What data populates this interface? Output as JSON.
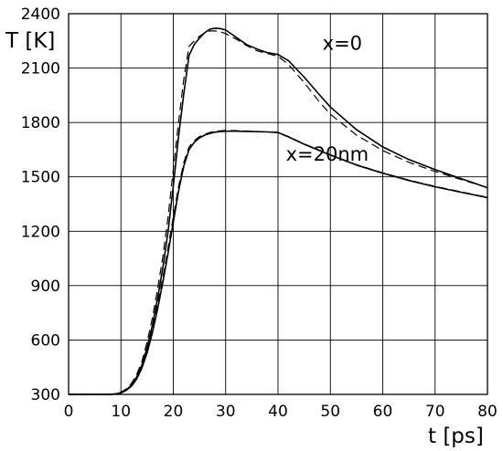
{
  "chart_data": {
    "type": "line",
    "ylabel": "T [K]",
    "xlabel": "t [ps]",
    "xlim": [
      0,
      80
    ],
    "ylim": [
      300,
      2400
    ],
    "x_ticks": [
      0,
      10,
      20,
      30,
      40,
      50,
      60,
      70,
      80
    ],
    "y_ticks": [
      300,
      600,
      900,
      1200,
      1500,
      1800,
      2100,
      2400
    ],
    "grid": true,
    "annotations": [
      {
        "text": "x=0",
        "x": 48.5,
        "y": 2200
      },
      {
        "text": "x=20nm",
        "x": 41.5,
        "y": 1590
      }
    ],
    "series": [
      {
        "style": "solid",
        "points": [
          [
            0,
            300
          ],
          [
            8,
            300
          ],
          [
            9,
            303
          ],
          [
            10,
            310
          ],
          [
            11,
            325
          ],
          [
            12,
            350
          ],
          [
            13,
            395
          ],
          [
            14,
            460
          ],
          [
            15,
            560
          ],
          [
            16,
            680
          ],
          [
            17,
            830
          ],
          [
            18,
            1000
          ],
          [
            19,
            1200
          ],
          [
            20,
            1450
          ],
          [
            21,
            1720
          ],
          [
            22,
            1960
          ],
          [
            23,
            2170
          ],
          [
            24,
            2230
          ],
          [
            25,
            2265
          ],
          [
            26,
            2295
          ],
          [
            27,
            2315
          ],
          [
            28,
            2320
          ],
          [
            29,
            2318
          ],
          [
            30,
            2310
          ],
          [
            32,
            2270
          ],
          [
            34,
            2230
          ],
          [
            36,
            2205
          ],
          [
            38,
            2185
          ],
          [
            40,
            2175
          ],
          [
            42,
            2140
          ],
          [
            45,
            2050
          ],
          [
            48,
            1950
          ],
          [
            50,
            1885
          ],
          [
            55,
            1760
          ],
          [
            60,
            1665
          ],
          [
            65,
            1595
          ],
          [
            70,
            1540
          ],
          [
            75,
            1490
          ],
          [
            80,
            1440
          ]
        ]
      },
      {
        "style": "dashed",
        "points": [
          [
            0,
            300
          ],
          [
            8,
            300
          ],
          [
            9,
            303
          ],
          [
            10,
            312
          ],
          [
            11,
            330
          ],
          [
            12,
            360
          ],
          [
            13,
            410
          ],
          [
            14,
            480
          ],
          [
            15,
            590
          ],
          [
            16,
            720
          ],
          [
            17,
            880
          ],
          [
            18,
            1060
          ],
          [
            19,
            1280
          ],
          [
            20,
            1540
          ],
          [
            21,
            1800
          ],
          [
            22,
            2040
          ],
          [
            23,
            2220
          ],
          [
            24,
            2250
          ],
          [
            25,
            2275
          ],
          [
            26,
            2295
          ],
          [
            27,
            2305
          ],
          [
            28,
            2305
          ],
          [
            29,
            2300
          ],
          [
            30,
            2290
          ],
          [
            32,
            2260
          ],
          [
            34,
            2225
          ],
          [
            36,
            2195
          ],
          [
            38,
            2180
          ],
          [
            40,
            2165
          ],
          [
            42,
            2120
          ],
          [
            45,
            2020
          ],
          [
            48,
            1910
          ],
          [
            50,
            1845
          ],
          [
            55,
            1730
          ],
          [
            60,
            1645
          ],
          [
            65,
            1580
          ],
          [
            70,
            1530
          ],
          [
            75,
            1485
          ],
          [
            80,
            1440
          ]
        ]
      },
      {
        "style": "solid",
        "points": [
          [
            0,
            300
          ],
          [
            8,
            300
          ],
          [
            9,
            302
          ],
          [
            10,
            308
          ],
          [
            11,
            322
          ],
          [
            12,
            345
          ],
          [
            13,
            385
          ],
          [
            14,
            445
          ],
          [
            15,
            530
          ],
          [
            16,
            640
          ],
          [
            17,
            770
          ],
          [
            18,
            920
          ],
          [
            19,
            1080
          ],
          [
            20,
            1250
          ],
          [
            21,
            1420
          ],
          [
            22,
            1560
          ],
          [
            23,
            1650
          ],
          [
            24,
            1690
          ],
          [
            25,
            1715
          ],
          [
            26,
            1730
          ],
          [
            27,
            1740
          ],
          [
            28,
            1747
          ],
          [
            30,
            1752
          ],
          [
            32,
            1752
          ],
          [
            35,
            1750
          ],
          [
            38,
            1748
          ],
          [
            40,
            1745
          ],
          [
            42,
            1720
          ],
          [
            45,
            1680
          ],
          [
            50,
            1620
          ],
          [
            55,
            1565
          ],
          [
            60,
            1520
          ],
          [
            65,
            1480
          ],
          [
            70,
            1445
          ],
          [
            75,
            1415
          ],
          [
            80,
            1385
          ]
        ]
      },
      {
        "style": "dashed",
        "points": [
          [
            0,
            300
          ],
          [
            8,
            300
          ],
          [
            9,
            303
          ],
          [
            10,
            311
          ],
          [
            11,
            328
          ],
          [
            12,
            355
          ],
          [
            13,
            400
          ],
          [
            14,
            465
          ],
          [
            15,
            555
          ],
          [
            16,
            665
          ],
          [
            17,
            795
          ],
          [
            18,
            945
          ],
          [
            19,
            1110
          ],
          [
            20,
            1280
          ],
          [
            21,
            1445
          ],
          [
            22,
            1580
          ],
          [
            23,
            1665
          ],
          [
            24,
            1700
          ],
          [
            25,
            1722
          ],
          [
            26,
            1735
          ],
          [
            27,
            1745
          ],
          [
            28,
            1752
          ],
          [
            30,
            1756
          ],
          [
            32,
            1755
          ],
          [
            35,
            1752
          ],
          [
            38,
            1748
          ],
          [
            40,
            1744
          ],
          [
            42,
            1722
          ],
          [
            45,
            1682
          ],
          [
            50,
            1622
          ],
          [
            55,
            1567
          ],
          [
            60,
            1522
          ],
          [
            65,
            1482
          ],
          [
            70,
            1447
          ],
          [
            75,
            1417
          ],
          [
            80,
            1387
          ]
        ]
      }
    ]
  }
}
